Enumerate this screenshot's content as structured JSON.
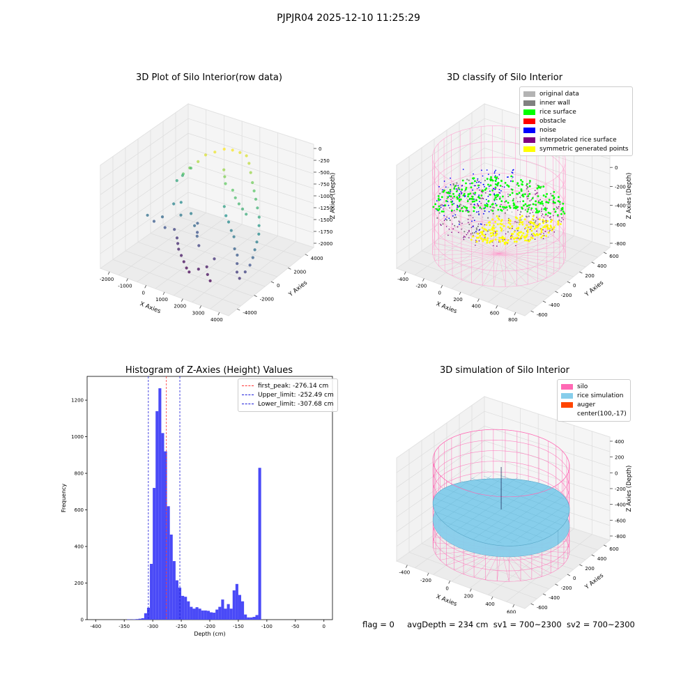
{
  "figure": {
    "suptitle": "PJPJR04 2025-12-10 11:25:29",
    "footer": {
      "flag": "flag = 0",
      "avg_depth": "avgDepth = 234 cm",
      "sv1": "sv1 = 700~2300",
      "sv2": "sv2 = 700~2300"
    }
  },
  "chart_data": [
    {
      "type": "scatter",
      "projection": "3d",
      "title": "3D Plot of Silo Interior(row data)",
      "xlabel": "X Axies",
      "ylabel": "Y Axies",
      "zlabel": "Z Axies (Depth)",
      "xticks": [
        -2000,
        -1000,
        0,
        1000,
        2000,
        3000,
        4000
      ],
      "yticks": [
        -4000,
        -2000,
        0,
        2000,
        4000
      ],
      "zticks": [
        0,
        -250,
        -500,
        -750,
        -1000,
        -1250,
        -1500,
        -1750,
        -2000
      ],
      "colormap": "viridis",
      "series": [
        {
          "points": [
            [
              -1700,
              -1200,
              -1350
            ],
            [
              -1500,
              -900,
              -1500
            ],
            [
              -1200,
              -600,
              -1400
            ],
            [
              -900,
              -900,
              -1550
            ],
            [
              -700,
              -300,
              -1650
            ],
            [
              -400,
              -600,
              -1750
            ],
            [
              -200,
              -900,
              -1800
            ],
            [
              0,
              -1200,
              -1850
            ],
            [
              300,
              -1500,
              -1900
            ],
            [
              600,
              -1800,
              -1950
            ],
            [
              900,
              -2100,
              -2000
            ],
            [
              1200,
              -2400,
              -2000
            ],
            [
              1500,
              -2000,
              -1950
            ],
            [
              1800,
              -1700,
              -1900
            ],
            [
              2100,
              -2200,
              -1950
            ],
            [
              2400,
              -2500,
              -2000
            ],
            [
              -1000,
              200,
              -1200
            ],
            [
              -700,
              400,
              -1150
            ],
            [
              -400,
              -200,
              -1300
            ],
            [
              0,
              100,
              -1250
            ],
            [
              400,
              -300,
              -1400
            ],
            [
              800,
              -800,
              -1500
            ],
            [
              -300,
              2200,
              -300
            ],
            [
              0,
              2600,
              -250
            ],
            [
              300,
              3000,
              -200
            ],
            [
              600,
              3300,
              -220
            ],
            [
              900,
              3500,
              -260
            ],
            [
              1200,
              3600,
              -300
            ],
            [
              -500,
              1800,
              -420
            ],
            [
              -800,
              1500,
              -560
            ],
            [
              -1000,
              1200,
              -680
            ],
            [
              1500,
              3300,
              -380
            ],
            [
              1800,
              2900,
              -480
            ],
            [
              2100,
              2500,
              -600
            ],
            [
              2400,
              2100,
              -680
            ],
            [
              2700,
              1700,
              -760
            ],
            [
              3000,
              1300,
              -850
            ],
            [
              3300,
              900,
              -950
            ],
            [
              3500,
              500,
              -1050
            ],
            [
              3700,
              100,
              -1150
            ],
            [
              3800,
              -300,
              -1250
            ],
            [
              3900,
              -700,
              -1350
            ],
            [
              4000,
              -1100,
              -1450
            ],
            [
              4050,
              -1500,
              -1550
            ],
            [
              4000,
              -1900,
              -1650
            ],
            [
              3900,
              -2300,
              -1750
            ],
            [
              1600,
              1400,
              -680
            ],
            [
              1900,
              1100,
              -760
            ],
            [
              2200,
              900,
              -820
            ],
            [
              2500,
              700,
              -860
            ],
            [
              2800,
              500,
              -900
            ],
            [
              1400,
              900,
              -1000
            ],
            [
              1700,
              500,
              -1100
            ],
            [
              2000,
              200,
              -1150
            ],
            [
              2300,
              -100,
              -1250
            ],
            [
              2600,
              -400,
              -1300
            ],
            [
              900,
              1900,
              -560
            ],
            [
              700,
              2200,
              -480
            ],
            [
              1100,
              1600,
              -640
            ],
            [
              -1200,
              2400,
              -760
            ],
            [
              -1400,
              1900,
              -880
            ],
            [
              -1500,
              1500,
              -950
            ],
            [
              500,
              -200,
              -1550
            ],
            [
              200,
              400,
              -1480
            ],
            [
              2900,
              -900,
              -1450
            ],
            [
              3200,
              -1200,
              -1500
            ],
            [
              3400,
              -1600,
              -1600
            ],
            [
              3600,
              -2000,
              -1700
            ],
            [
              1000,
              -1000,
              -1650
            ],
            [
              2000,
              -1300,
              -1750
            ]
          ]
        }
      ]
    },
    {
      "type": "scatter",
      "projection": "3d",
      "title": "3D classify of Silo Interior",
      "xlabel": "X Axies",
      "ylabel": "Y Axies",
      "zlabel": "Z Axies (Depth)",
      "xticks": [
        -400,
        -200,
        0,
        200,
        400,
        600,
        800
      ],
      "yticks": [
        -600,
        -400,
        -200,
        0,
        200,
        400,
        600
      ],
      "zticks": [
        200,
        0,
        -200,
        -400,
        -600,
        -800
      ],
      "legend_position": "upper right",
      "legend": [
        {
          "label": "original data",
          "color": "#b3b3b3"
        },
        {
          "label": "inner wall",
          "color": "#808080"
        },
        {
          "label": "rice surface",
          "color": "#00ff00"
        },
        {
          "label": "obstacle",
          "color": "#ff0000"
        },
        {
          "label": "noise",
          "color": "#0000ff"
        },
        {
          "label": "interpolated rice surface",
          "color": "#800080"
        },
        {
          "label": "symmetric generated points",
          "color": "#ffff00"
        }
      ],
      "silo": {
        "center": [
          100,
          -17
        ],
        "radius": 600,
        "z_top": 300,
        "z_bottom": -800,
        "color": "#ff99cc"
      }
    },
    {
      "type": "bar",
      "title": "Histogram of Z-Axies (Height) Values",
      "xlabel": "Depth (cm)",
      "ylabel": "Frequency",
      "xlim": [
        -415,
        15
      ],
      "ylim": [
        0,
        1330
      ],
      "xticks": [
        -400,
        -350,
        -300,
        -250,
        -200,
        -150,
        -100,
        -50,
        0
      ],
      "yticks": [
        0,
        200,
        400,
        600,
        800,
        1000,
        1200
      ],
      "bin_width": 5,
      "bar_color": "#4a4af7",
      "bins": [
        {
          "left": -345,
          "count": 2
        },
        {
          "left": -340,
          "count": 1
        },
        {
          "left": -335,
          "count": 2
        },
        {
          "left": -330,
          "count": 3
        },
        {
          "left": -325,
          "count": 5
        },
        {
          "left": -320,
          "count": 8
        },
        {
          "left": -315,
          "count": 35
        },
        {
          "left": -310,
          "count": 65
        },
        {
          "left": -305,
          "count": 305
        },
        {
          "left": -300,
          "count": 720
        },
        {
          "left": -295,
          "count": 1140
        },
        {
          "left": -290,
          "count": 1265
        },
        {
          "left": -285,
          "count": 1020
        },
        {
          "left": -280,
          "count": 920
        },
        {
          "left": -275,
          "count": 620
        },
        {
          "left": -270,
          "count": 465
        },
        {
          "left": -265,
          "count": 320
        },
        {
          "left": -260,
          "count": 215
        },
        {
          "left": -255,
          "count": 175
        },
        {
          "left": -250,
          "count": 130
        },
        {
          "left": -245,
          "count": 125
        },
        {
          "left": -240,
          "count": 100
        },
        {
          "left": -235,
          "count": 70
        },
        {
          "left": -230,
          "count": 60
        },
        {
          "left": -225,
          "count": 68
        },
        {
          "left": -220,
          "count": 60
        },
        {
          "left": -215,
          "count": 50
        },
        {
          "left": -210,
          "count": 50
        },
        {
          "left": -205,
          "count": 48
        },
        {
          "left": -200,
          "count": 40
        },
        {
          "left": -195,
          "count": 38
        },
        {
          "left": -190,
          "count": 55
        },
        {
          "left": -185,
          "count": 70
        },
        {
          "left": -180,
          "count": 110
        },
        {
          "left": -175,
          "count": 60
        },
        {
          "left": -170,
          "count": 85
        },
        {
          "left": -165,
          "count": 60
        },
        {
          "left": -160,
          "count": 160
        },
        {
          "left": -155,
          "count": 195
        },
        {
          "left": -150,
          "count": 135
        },
        {
          "left": -145,
          "count": 100
        },
        {
          "left": -140,
          "count": 28
        },
        {
          "left": -135,
          "count": 12
        },
        {
          "left": -130,
          "count": 12
        },
        {
          "left": -125,
          "count": 15
        },
        {
          "left": -120,
          "count": 25
        },
        {
          "left": -115,
          "count": 830
        }
      ],
      "lines": [
        {
          "label": "first_peak: -276.14 cm",
          "x": -276.14,
          "color": "#ff3333"
        },
        {
          "label": "Upper_limit: -252.49 cm",
          "x": -252.49,
          "color": "#1a1ad9"
        },
        {
          "label": "Lower_limit: -307.68 cm",
          "x": -307.68,
          "color": "#1a1ad9"
        }
      ],
      "legend_position": "upper right"
    },
    {
      "type": "surface",
      "projection": "3d",
      "title": "3D simulation of Silo Interior",
      "xlabel": "X Axies",
      "ylabel": "Y Axies",
      "zlabel": "Z Axies (Depth)",
      "xticks": [
        -400,
        -200,
        0,
        200,
        400,
        600
      ],
      "yticks": [
        -600,
        -400,
        -200,
        0,
        200,
        400,
        600
      ],
      "zticks": [
        400,
        200,
        0,
        -200,
        -400,
        -600,
        -800
      ],
      "legend_position": "upper right",
      "legend": [
        {
          "label": "silo",
          "color": "#ff69b4"
        },
        {
          "label": "rice simulation",
          "color": "#87ceeb"
        },
        {
          "label": "auger",
          "color": "#ff4500"
        },
        {
          "label": "center(100,-17)",
          "color": ""
        }
      ],
      "rice": {
        "center": [
          100,
          -17
        ],
        "radius": 600,
        "z_top": -300,
        "z_bottom": -480,
        "color": "#87ceeb"
      },
      "silo": {
        "center": [
          100,
          -17
        ],
        "radius": 600,
        "z_top": 300,
        "z_bottom": -800,
        "color": "#ff69b4"
      }
    }
  ]
}
